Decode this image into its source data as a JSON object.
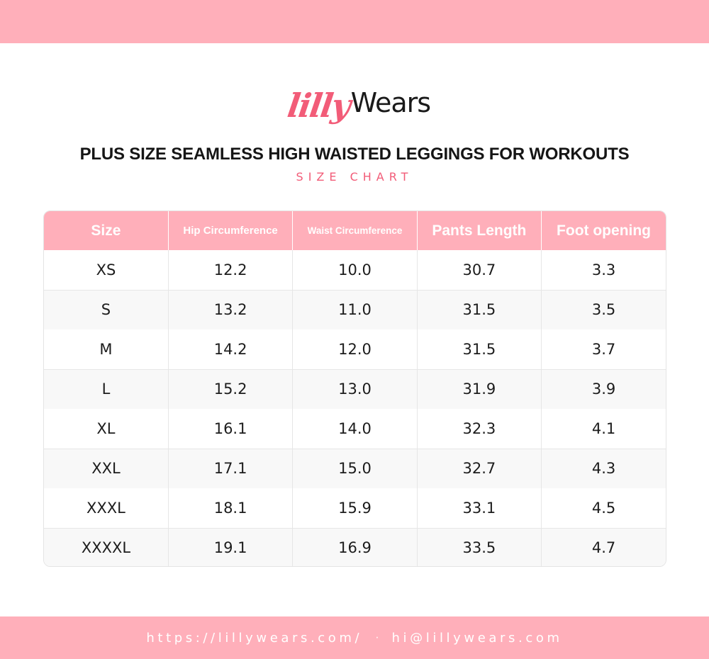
{
  "brand": {
    "logo_script": "lilly",
    "logo_word": "Wears",
    "accent_color": "#F25C78",
    "band_color": "#FFAFBA"
  },
  "header": {
    "title": "PLUS SIZE SEAMLESS HIGH WAISTED LEGGINGS FOR WORKOUTS",
    "subtitle": "SIZE CHART"
  },
  "table": {
    "columns": [
      "Size",
      "Hip Circumference",
      "Waist Circumference",
      "Pants Length",
      "Foot opening"
    ],
    "rows": [
      [
        "XS",
        "12.2",
        "10.0",
        "30.7",
        "3.3"
      ],
      [
        "S",
        "13.2",
        "11.0",
        "31.5",
        "3.5"
      ],
      [
        "M",
        "14.2",
        "12.0",
        "31.5",
        "3.7"
      ],
      [
        "L",
        "15.2",
        "13.0",
        "31.9",
        "3.9"
      ],
      [
        "XL",
        "16.1",
        "14.0",
        "32.3",
        "4.1"
      ],
      [
        "XXL",
        "17.1",
        "15.0",
        "32.7",
        "4.3"
      ],
      [
        "XXXL",
        "18.1",
        "15.9",
        "33.1",
        "4.5"
      ],
      [
        "XXXXL",
        "19.1",
        "16.9",
        "33.5",
        "4.7"
      ]
    ]
  },
  "footer": {
    "website": "https://lillywears.com/",
    "separator": "·",
    "email": "hi@lillywears.com"
  }
}
